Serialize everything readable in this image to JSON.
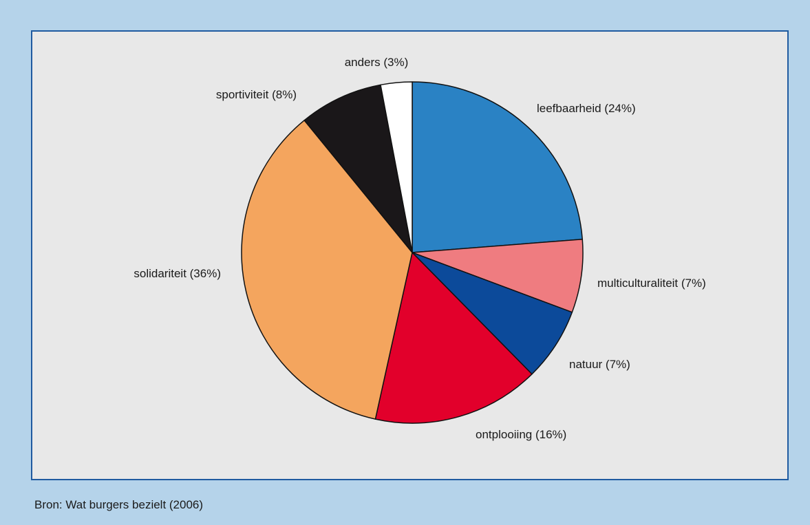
{
  "source_note": "Bron: Wat burgers bezielt (2006)",
  "chart_data": {
    "type": "pie",
    "title": "",
    "start_angle_deg": 0,
    "direction": "clockwise",
    "slices": [
      {
        "label": "leefbaarheid (24%)",
        "category": "leefbaarheid",
        "value": 24,
        "color": "#2a82c4"
      },
      {
        "label": "multiculturaliteit (7%)",
        "category": "multiculturaliteit",
        "value": 7,
        "color": "#ef7c80"
      },
      {
        "label": "natuur (7%)",
        "category": "natuur",
        "value": 7,
        "color": "#0c4a9a"
      },
      {
        "label": "ontplooiing (16%)",
        "category": "ontplooiing",
        "value": 16,
        "color": "#e2002b"
      },
      {
        "label": "solidariteit (36%)",
        "category": "solidariteit",
        "value": 36,
        "color": "#f4a55e"
      },
      {
        "label": "sportiviteit (8%)",
        "category": "sportiviteit",
        "value": 8,
        "color": "#1a1719"
      },
      {
        "label": "anders (3%)",
        "category": "anders",
        "value": 3,
        "color": "#ffffff"
      }
    ]
  }
}
